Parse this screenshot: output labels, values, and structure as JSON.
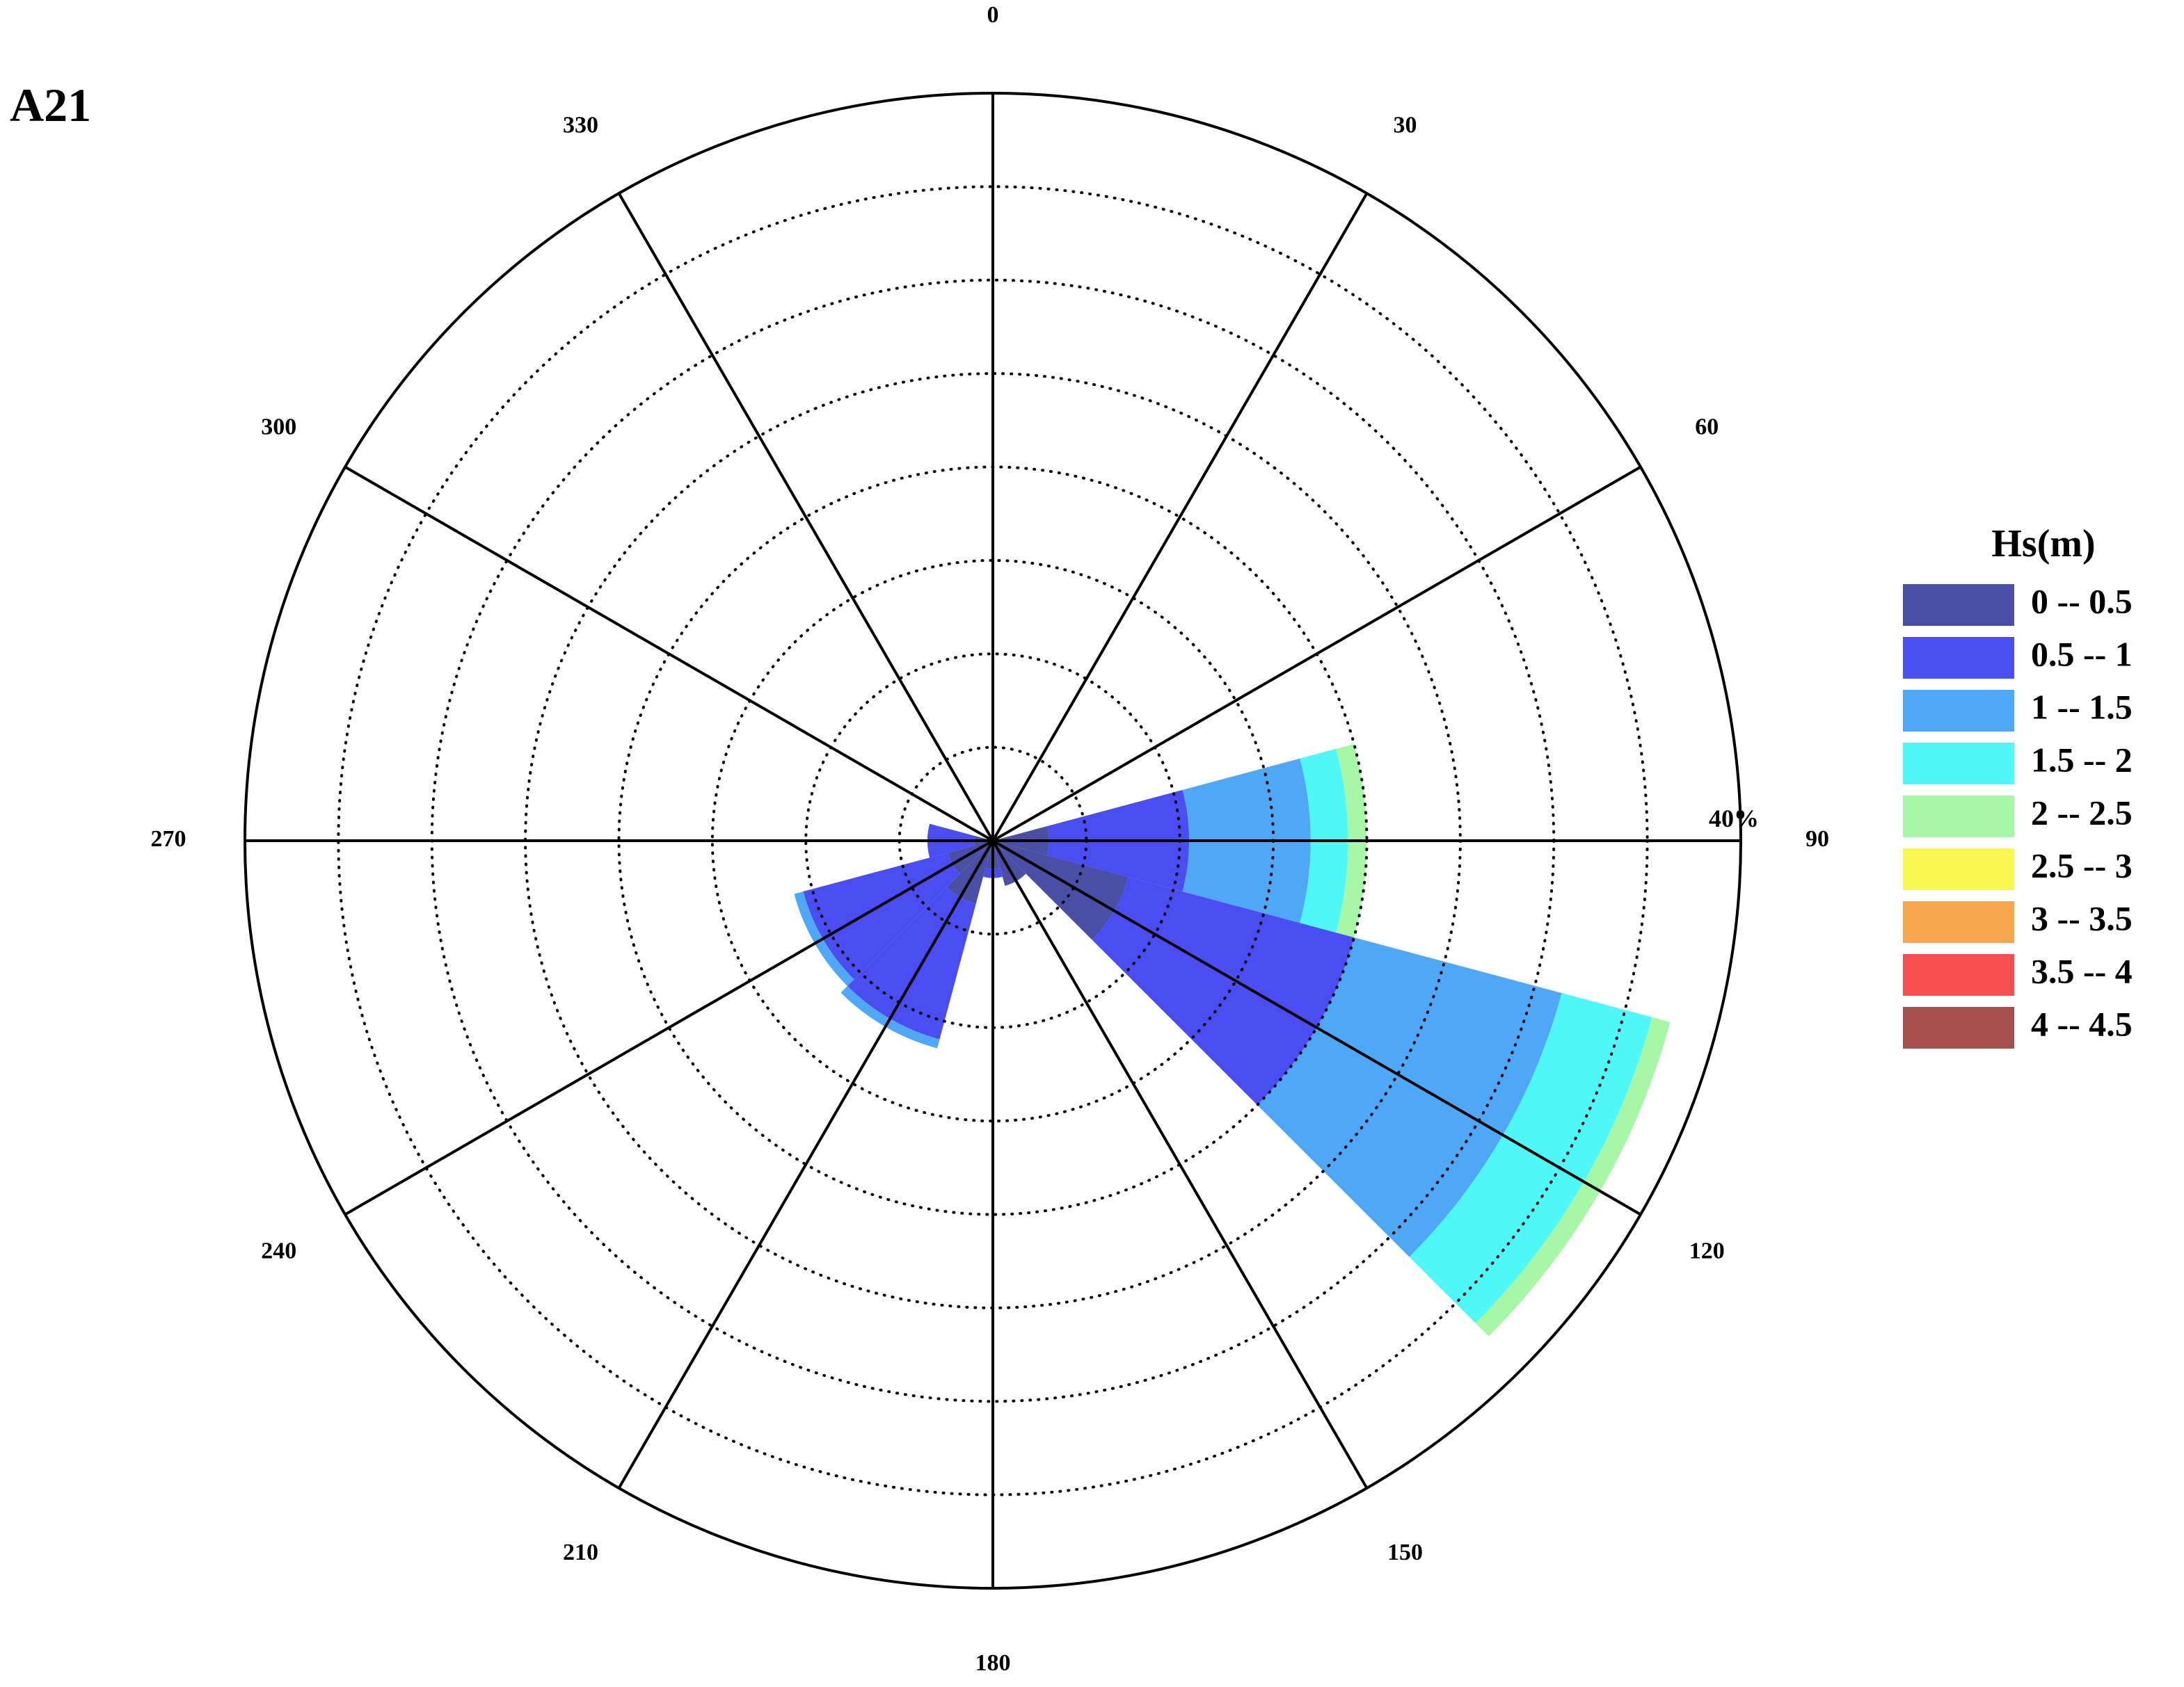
{
  "panel_label": "A21",
  "chart_data": {
    "type": "windrose",
    "title": "",
    "legend_title": "Hs(m)",
    "legend_placement": "right",
    "radial_max_label": "40%",
    "radial_max": 40,
    "radial_gridlines": [
      5,
      10,
      15,
      20,
      25,
      30,
      35
    ],
    "angle_ticks": [
      "0",
      "30",
      "60",
      "90",
      "120",
      "150",
      "180",
      "210",
      "240",
      "270",
      "300",
      "330"
    ],
    "sector_width_deg": 30,
    "bins": [
      {
        "label": "0 -- 0.5",
        "color": "#4a4fa6"
      },
      {
        "label": "0.5 -- 1",
        "color": "#4a4df2"
      },
      {
        "label": "1 -- 1.5",
        "color": "#4fa8f7"
      },
      {
        "label": "1.5 -- 2",
        "color": "#4ff7f7"
      },
      {
        "label": "2 -- 2.5",
        "color": "#a6f7a6"
      },
      {
        "label": "2.5 -- 3",
        "color": "#f7f74f"
      },
      {
        "label": "3 -- 3.5",
        "color": "#f7a64f"
      },
      {
        "label": "3.5 -- 4",
        "color": "#f74f4f"
      },
      {
        "label": "4 -- 4.5",
        "color": "#a64f4f"
      }
    ],
    "sectors": [
      {
        "direction": 90,
        "cumulative": [
          3.0,
          10.5,
          17.0,
          19.0,
          20.0
        ]
      },
      {
        "direction": 120,
        "cumulative": [
          7.5,
          20.0,
          31.5,
          36.5,
          37.5
        ]
      },
      {
        "direction": 150,
        "cumulative": [
          2.5
        ]
      },
      {
        "direction": 180,
        "cumulative": [
          1.5,
          2.0
        ]
      },
      {
        "direction": 210,
        "cumulative": [
          3.5,
          11.0,
          11.5
        ]
      },
      {
        "direction": 240,
        "cumulative": [
          2.5,
          10.5,
          11.0
        ]
      },
      {
        "direction": 270,
        "cumulative": [
          1.0,
          3.5
        ]
      }
    ]
  }
}
